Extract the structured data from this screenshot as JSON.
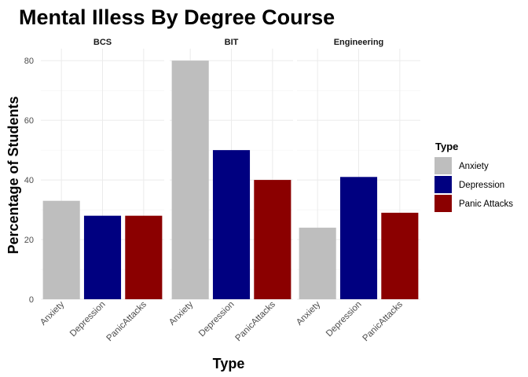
{
  "chart_data": {
    "type": "bar",
    "title": "Mental Illess By Degree Course",
    "xlabel": "Type",
    "ylabel": "Percentage of Students",
    "ylim": [
      0,
      84
    ],
    "yticks": [
      0,
      20,
      40,
      60,
      80
    ],
    "grid": true,
    "legend": {
      "title": "Type",
      "placement": "right",
      "entries": [
        "Anxiety",
        "Depression",
        "Panic Attacks"
      ]
    },
    "categories": [
      "Anxiety",
      "Depression",
      "PanicAttacks"
    ],
    "colors": [
      "#bebebe",
      "#000080",
      "#8b0000"
    ],
    "panels": [
      {
        "name": "BCS",
        "values": [
          33,
          28,
          28
        ]
      },
      {
        "name": "BIT",
        "values": [
          80,
          50,
          40
        ]
      },
      {
        "name": "Engineering",
        "values": [
          24,
          41,
          29
        ]
      }
    ]
  }
}
